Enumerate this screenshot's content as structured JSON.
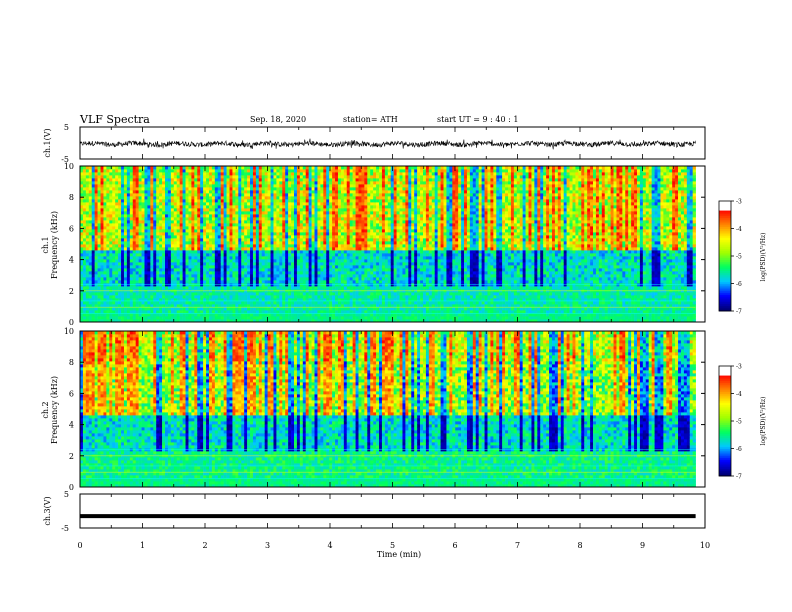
{
  "chart_data": {
    "type": "heatmap",
    "header": {
      "title": "VLF Spectra",
      "date": "Sep. 18, 2020",
      "station": "station= ATH",
      "start": "start  UT =   9 : 40 : 1"
    },
    "time_axis": {
      "label": "Time  (min)",
      "range": [
        0,
        10
      ],
      "ticks": [
        "0",
        "1",
        "2",
        "3",
        "4",
        "5",
        "6",
        "7",
        "8",
        "9",
        "10"
      ],
      "data_end": 9.85
    },
    "waveform_ch1": {
      "ylabel": "ch.1(V)",
      "ylim": [
        -5,
        5
      ],
      "yticks": [
        "5",
        "-5"
      ],
      "baseline": -0.3,
      "amplitude": 1.5
    },
    "waveform_ch3": {
      "ylabel": "ch.3(V)",
      "ylim": [
        -5,
        5
      ],
      "yticks": [
        "5",
        "-5"
      ],
      "value": -1.5
    },
    "spectrogram_ch1": {
      "ylabel_channel": "ch.1",
      "ylabel": "Frequency (kHz)",
      "ylim": [
        0,
        10
      ],
      "yticks": [
        "0",
        "2",
        "4",
        "6",
        "8",
        "10"
      ],
      "colorbar_label": "log(PSD)(V²/Hz)",
      "colorbar_range": [
        -7,
        -3
      ],
      "colorbar_ticks": [
        "-3",
        "-4",
        "-5",
        "-6",
        "-7"
      ]
    },
    "spectrogram_ch2": {
      "ylabel_channel": "ch.2",
      "ylabel": "Frequency (kHz)",
      "ylim": [
        0,
        10
      ],
      "yticks": [
        "0",
        "2",
        "4",
        "6",
        "8",
        "10"
      ],
      "colorbar_label": "log(PSD)(V²/Hz)",
      "colorbar_range": [
        -7,
        -3
      ],
      "colorbar_ticks": [
        "-3",
        "-4",
        "-5",
        "-6",
        "-7"
      ]
    },
    "colors": {
      "colormap": [
        "#000070",
        "#0000ff",
        "#00c8ff",
        "#00ff60",
        "#a0ff00",
        "#ffff00",
        "#ff8000",
        "#ff0000",
        "#ffffff"
      ],
      "trace": "#000000",
      "frame": "#000000"
    }
  }
}
